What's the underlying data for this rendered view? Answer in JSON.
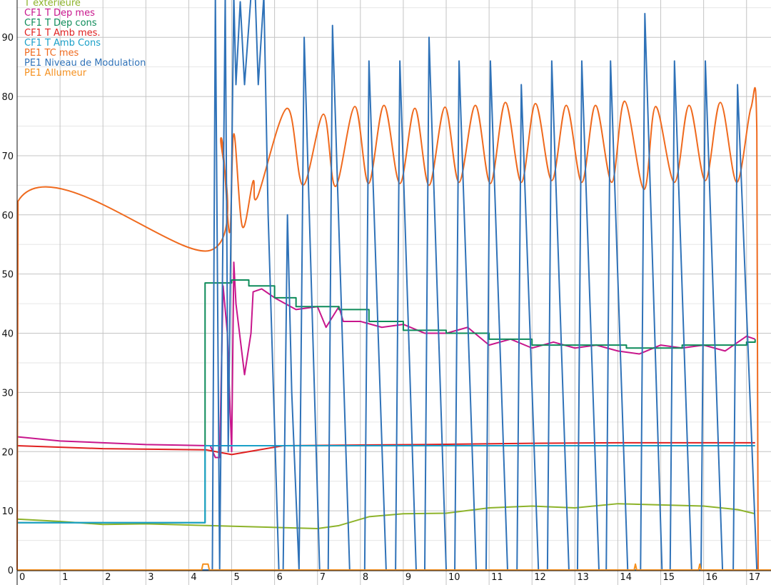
{
  "chart_data": {
    "type": "line",
    "title": "",
    "xlabel": "",
    "ylabel": "",
    "xlim": [
      0,
      17.57
    ],
    "ylim": [
      0,
      96.3
    ],
    "grid": true,
    "legend_placement": "top-left",
    "x_ticks": [
      "0",
      "1",
      "2",
      "3",
      "4",
      "5",
      "6",
      "7",
      "8",
      "9",
      "10",
      "11",
      "12",
      "13",
      "14",
      "15",
      "16",
      "17"
    ],
    "y_ticks": [
      "0",
      "10",
      "20",
      "30",
      "40",
      "50",
      "60",
      "70",
      "80",
      "90"
    ],
    "series": [
      {
        "name": "T extérieure",
        "color": "#8db32a",
        "smooth": false,
        "points": [
          [
            0,
            8.6
          ],
          [
            1,
            8.2
          ],
          [
            2,
            7.7
          ],
          [
            3,
            7.8
          ],
          [
            4.5,
            7.5
          ],
          [
            6,
            7.2
          ],
          [
            7,
            7
          ],
          [
            7.5,
            7.5
          ],
          [
            8.2,
            9
          ],
          [
            9,
            9.5
          ],
          [
            10,
            9.6
          ],
          [
            11,
            10.5
          ],
          [
            12,
            10.8
          ],
          [
            13,
            10.5
          ],
          [
            14,
            11.2
          ],
          [
            15,
            11
          ],
          [
            16,
            10.8
          ],
          [
            16.8,
            10.2
          ],
          [
            17.2,
            9.5
          ]
        ]
      },
      {
        "name": "CF1 T Dep mes",
        "color": "#c8168c",
        "smooth": false,
        "points": [
          [
            0,
            22.5
          ],
          [
            1,
            21.8
          ],
          [
            2,
            21.5
          ],
          [
            3,
            21.2
          ],
          [
            4.5,
            21
          ],
          [
            4.62,
            19
          ],
          [
            4.72,
            19
          ],
          [
            4.8,
            48
          ],
          [
            4.9,
            40
          ],
          [
            5.0,
            20
          ],
          [
            5.05,
            52
          ],
          [
            5.1,
            45
          ],
          [
            5.3,
            33
          ],
          [
            5.45,
            40
          ],
          [
            5.5,
            47
          ],
          [
            5.7,
            47.5
          ],
          [
            6,
            46
          ],
          [
            6.5,
            44
          ],
          [
            7,
            44.5
          ],
          [
            7.2,
            41
          ],
          [
            7.5,
            44.5
          ],
          [
            7.6,
            42
          ],
          [
            8,
            42
          ],
          [
            8.5,
            41
          ],
          [
            9,
            41.5
          ],
          [
            9.5,
            40
          ],
          [
            10,
            40
          ],
          [
            10.5,
            41
          ],
          [
            11,
            38
          ],
          [
            11.5,
            39
          ],
          [
            12,
            37.5
          ],
          [
            12.5,
            38.5
          ],
          [
            13,
            37.5
          ],
          [
            13.5,
            38
          ],
          [
            14,
            37
          ],
          [
            14.5,
            36.5
          ],
          [
            15,
            38
          ],
          [
            15.5,
            37.5
          ],
          [
            16,
            38
          ],
          [
            16.5,
            37
          ],
          [
            17,
            39.5
          ],
          [
            17.2,
            39
          ]
        ]
      },
      {
        "name": "CF1 T Dep cons",
        "color": "#0e8c5a",
        "smooth": false,
        "step": true,
        "points": [
          [
            0,
            8
          ],
          [
            4.38,
            48.5
          ],
          [
            5.0,
            49
          ],
          [
            5.4,
            48
          ],
          [
            6,
            46
          ],
          [
            6.5,
            44.5
          ],
          [
            7.5,
            44
          ],
          [
            8.2,
            42
          ],
          [
            9,
            40.5
          ],
          [
            10,
            40
          ],
          [
            11,
            39
          ],
          [
            12,
            38
          ],
          [
            14.2,
            37.5
          ],
          [
            15.5,
            38
          ],
          [
            16.5,
            38
          ],
          [
            17,
            38.5
          ],
          [
            17.2,
            39
          ]
        ]
      },
      {
        "name": "CF1 T Amb mes.",
        "color": "#e02020",
        "smooth": false,
        "points": [
          [
            0,
            21
          ],
          [
            2,
            20.5
          ],
          [
            4.4,
            20.3
          ],
          [
            5,
            19.5
          ],
          [
            5.8,
            20.5
          ],
          [
            6.2,
            21
          ],
          [
            9.5,
            21.2
          ],
          [
            12,
            21.4
          ],
          [
            14,
            21.5
          ],
          [
            17.2,
            21.5
          ]
        ]
      },
      {
        "name": "CF1 T Amb Cons",
        "color": "#1aa0c8",
        "smooth": false,
        "step": true,
        "points": [
          [
            0,
            8
          ],
          [
            4.38,
            21
          ],
          [
            17.2,
            21
          ]
        ]
      },
      {
        "name": "PE1 TC mes",
        "color": "#ef6a1e",
        "smooth": true,
        "points": [
          [
            0,
            0
          ],
          [
            0.02,
            62.3
          ],
          [
            4.5,
            54
          ],
          [
            4.75,
            73
          ],
          [
            4.95,
            57
          ],
          [
            5.05,
            73.7
          ],
          [
            5.25,
            58
          ],
          [
            5.5,
            65.7
          ],
          [
            5.6,
            63
          ],
          [
            6.29,
            78
          ],
          [
            6.66,
            65
          ],
          [
            7.14,
            77
          ],
          [
            7.42,
            64.8
          ],
          [
            7.87,
            78.3
          ],
          [
            8.19,
            65.3
          ],
          [
            8.55,
            78.5
          ],
          [
            8.92,
            65.3
          ],
          [
            9.27,
            78
          ],
          [
            9.6,
            65
          ],
          [
            9.97,
            78.2
          ],
          [
            10.3,
            65.5
          ],
          [
            10.68,
            78.5
          ],
          [
            11.03,
            65.3
          ],
          [
            11.38,
            79
          ],
          [
            11.75,
            65.5
          ],
          [
            12.08,
            78.8
          ],
          [
            12.46,
            65.8
          ],
          [
            12.8,
            78.5
          ],
          [
            13.16,
            65.5
          ],
          [
            13.48,
            78.5
          ],
          [
            13.86,
            65.5
          ],
          [
            14.16,
            79.2
          ],
          [
            14.61,
            64.3
          ],
          [
            14.88,
            78.3
          ],
          [
            15.32,
            65.5
          ],
          [
            15.66,
            78.5
          ],
          [
            16.04,
            65.8
          ],
          [
            16.39,
            79
          ],
          [
            16.77,
            65.5
          ],
          [
            17.1,
            78
          ],
          [
            17.24,
            74
          ],
          [
            17.27,
            0
          ]
        ]
      },
      {
        "name": "PE1 Niveau de Modulation",
        "color": "#2f72b8",
        "smooth": false,
        "points": [
          [
            0,
            0
          ],
          [
            4.55,
            0
          ],
          [
            4.62,
            97
          ],
          [
            4.72,
            0
          ],
          [
            4.85,
            97
          ],
          [
            4.92,
            20
          ],
          [
            5.05,
            97
          ],
          [
            5.1,
            82
          ],
          [
            5.2,
            96
          ],
          [
            5.3,
            82
          ],
          [
            5.45,
            97
          ],
          [
            5.55,
            97
          ],
          [
            5.62,
            82
          ],
          [
            5.75,
            97
          ],
          [
            5.85,
            60
          ],
          [
            6.1,
            0
          ],
          [
            6.2,
            0
          ],
          [
            6.3,
            60
          ],
          [
            6.4,
            30
          ],
          [
            6.57,
            0
          ],
          [
            6.69,
            90
          ],
          [
            7.05,
            0
          ],
          [
            7.25,
            0
          ],
          [
            7.35,
            92
          ],
          [
            7.75,
            0
          ],
          [
            8.1,
            0
          ],
          [
            8.2,
            86
          ],
          [
            8.6,
            0
          ],
          [
            8.82,
            0
          ],
          [
            8.92,
            86
          ],
          [
            9.3,
            0
          ],
          [
            9.5,
            0
          ],
          [
            9.6,
            90
          ],
          [
            10.0,
            0
          ],
          [
            10.2,
            0
          ],
          [
            10.3,
            86
          ],
          [
            10.7,
            0
          ],
          [
            10.93,
            0
          ],
          [
            11.03,
            86
          ],
          [
            11.43,
            0
          ],
          [
            11.65,
            0
          ],
          [
            11.75,
            82
          ],
          [
            12.15,
            0
          ],
          [
            12.36,
            0
          ],
          [
            12.46,
            86
          ],
          [
            12.86,
            0
          ],
          [
            13.06,
            0
          ],
          [
            13.16,
            86
          ],
          [
            13.56,
            0
          ],
          [
            13.73,
            0
          ],
          [
            13.83,
            86
          ],
          [
            14.23,
            0
          ],
          [
            14.53,
            0
          ],
          [
            14.63,
            94
          ],
          [
            15.03,
            0
          ],
          [
            15.22,
            0
          ],
          [
            15.32,
            86
          ],
          [
            15.72,
            0
          ],
          [
            15.94,
            0
          ],
          [
            16.04,
            86
          ],
          [
            16.44,
            0
          ],
          [
            16.69,
            0
          ],
          [
            16.79,
            82
          ],
          [
            17.24,
            0
          ]
        ]
      },
      {
        "name": "PE1 Allumeur",
        "color": "#f5901e",
        "smooth": false,
        "points": [
          [
            0,
            0
          ],
          [
            4.3,
            0
          ],
          [
            4.33,
            1
          ],
          [
            4.45,
            1
          ],
          [
            4.48,
            0
          ],
          [
            14.38,
            0
          ],
          [
            14.41,
            1
          ],
          [
            14.44,
            0
          ],
          [
            15.88,
            0
          ],
          [
            15.91,
            1
          ],
          [
            15.94,
            0
          ],
          [
            17.57,
            0
          ]
        ]
      }
    ]
  }
}
